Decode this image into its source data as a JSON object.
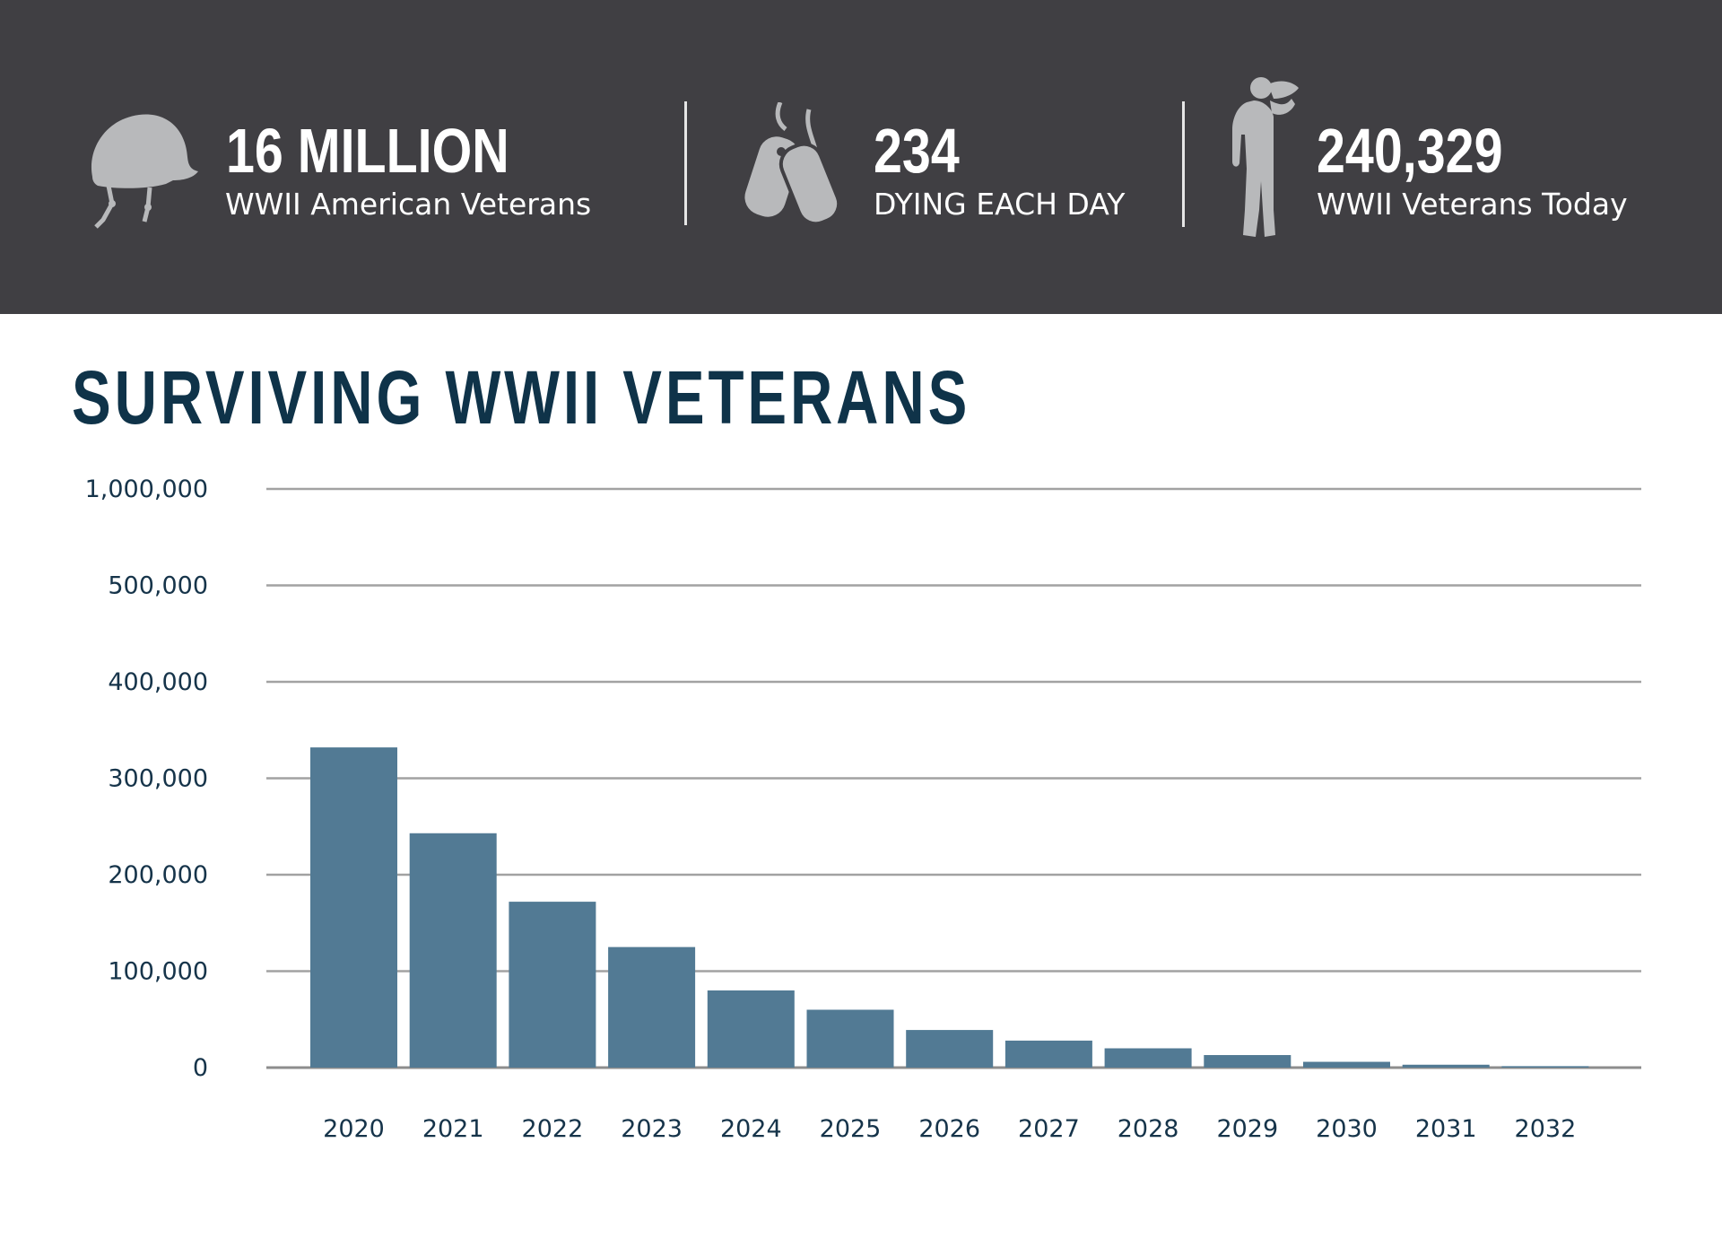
{
  "banner": {
    "background_color": "#403f43",
    "stats": [
      {
        "icon": "helmet-icon",
        "value": "16 MILLION",
        "label": "WWII American Veterans"
      },
      {
        "icon": "dog-tags-icon",
        "value": "234",
        "label": "DYING EACH DAY"
      },
      {
        "icon": "saluting-soldier-icon",
        "value": "240,329",
        "label": "WWII Veterans Today"
      }
    ]
  },
  "chart_data": {
    "type": "bar",
    "title": "SURVIVING WWII VETERANS",
    "xlabel": "",
    "ylabel": "",
    "categories": [
      "2020",
      "2021",
      "2022",
      "2023",
      "2024",
      "2025",
      "2026",
      "2027",
      "2028",
      "2029",
      "2030",
      "2031",
      "2032"
    ],
    "values": [
      332000,
      243000,
      172000,
      125000,
      80000,
      60000,
      39000,
      28000,
      20000,
      13000,
      6000,
      3000,
      1500
    ],
    "y_ticks": [
      "0",
      "100,000",
      "200,000",
      "300,000",
      "400,000",
      "500,000",
      "1,000,000"
    ],
    "grid": true,
    "bar_color": "#527a94",
    "title_color": "#0f3349",
    "icon_color": "#b8b9bb"
  }
}
